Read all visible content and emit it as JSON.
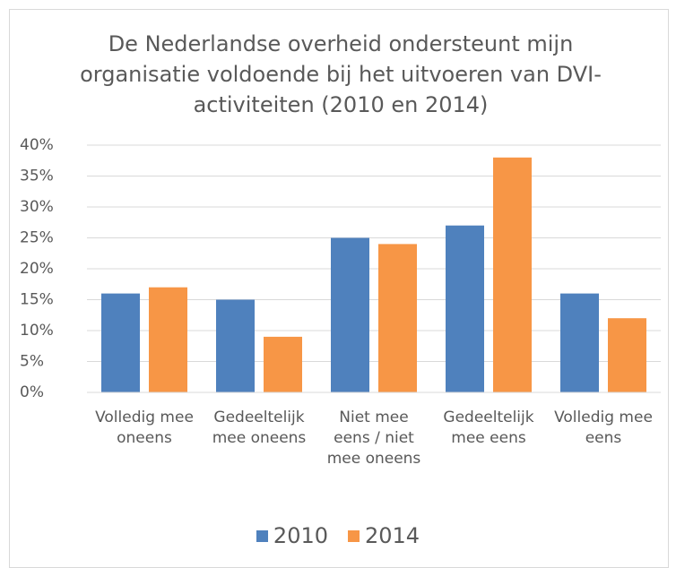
{
  "chart_data": {
    "type": "bar",
    "title": "De Nederlandse overheid ondersteunt mijn organisatie voldoende bij het uitvoeren van DVI-activiteiten (2010 en 2014)",
    "categories": [
      "Volledig mee oneens",
      "Gedeeltelijk mee oneens",
      "Niet mee eens / niet mee oneens",
      "Gedeeltelijk mee eens",
      "Volledig mee eens"
    ],
    "series": [
      {
        "name": "2010",
        "color": "#4f81bd",
        "values": [
          16,
          15,
          25,
          27,
          16
        ]
      },
      {
        "name": "2014",
        "color": "#f79646",
        "values": [
          17,
          9,
          24,
          38,
          12
        ]
      }
    ],
    "ylim": [
      0,
      40
    ],
    "yticks": [
      {
        "value": 0,
        "label": "0%"
      },
      {
        "value": 5,
        "label": "5%"
      },
      {
        "value": 10,
        "label": "10%"
      },
      {
        "value": 15,
        "label": "15%"
      },
      {
        "value": 20,
        "label": "20%"
      },
      {
        "value": 25,
        "label": "25%"
      },
      {
        "value": 30,
        "label": "30%"
      },
      {
        "value": 35,
        "label": "35%"
      },
      {
        "value": 40,
        "label": "40%"
      }
    ],
    "grid": true,
    "legend": "bottom"
  }
}
